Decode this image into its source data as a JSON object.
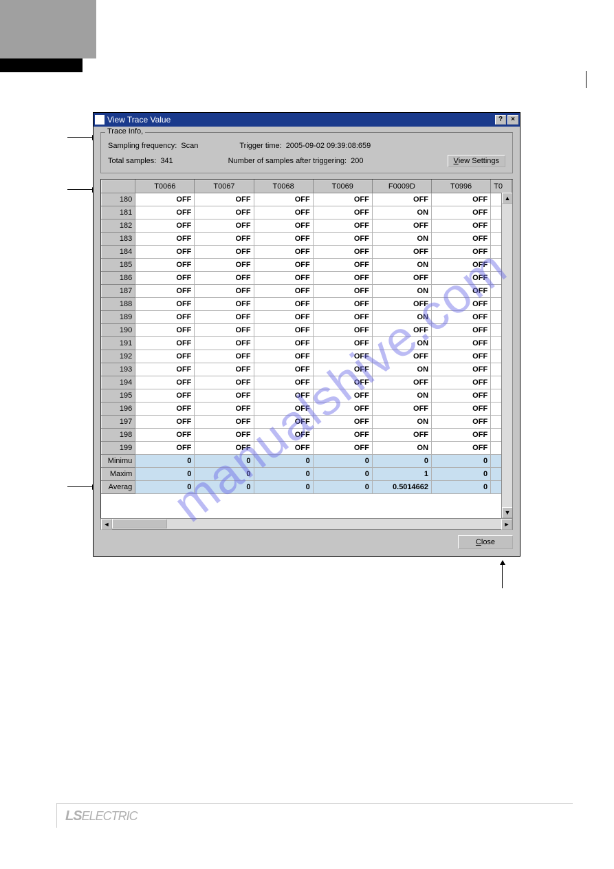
{
  "dialog": {
    "title": "View Trace Value",
    "help_btn": "?",
    "close_x": "×"
  },
  "trace_info": {
    "legend": "Trace Info,",
    "sampling_freq_label": "Sampling frequency:",
    "sampling_freq_value": "Scan",
    "trigger_time_label": "Trigger time:",
    "trigger_time_value": "2005-09-02 09:39:08:659",
    "total_samples_label": "Total samples:",
    "total_samples_value": "341",
    "after_trigger_label": "Number of samples after triggering:",
    "after_trigger_value": "200",
    "view_settings_label": "View Settings"
  },
  "grid": {
    "columns": [
      "T0066",
      "T0067",
      "T0068",
      "T0069",
      "F0009D",
      "T0996",
      "T0"
    ],
    "rows": [
      {
        "idx": "180",
        "cells": [
          "OFF",
          "OFF",
          "OFF",
          "OFF",
          "OFF",
          "OFF"
        ]
      },
      {
        "idx": "181",
        "cells": [
          "OFF",
          "OFF",
          "OFF",
          "OFF",
          "ON",
          "OFF"
        ]
      },
      {
        "idx": "182",
        "cells": [
          "OFF",
          "OFF",
          "OFF",
          "OFF",
          "OFF",
          "OFF"
        ]
      },
      {
        "idx": "183",
        "cells": [
          "OFF",
          "OFF",
          "OFF",
          "OFF",
          "ON",
          "OFF"
        ]
      },
      {
        "idx": "184",
        "cells": [
          "OFF",
          "OFF",
          "OFF",
          "OFF",
          "OFF",
          "OFF"
        ]
      },
      {
        "idx": "185",
        "cells": [
          "OFF",
          "OFF",
          "OFF",
          "OFF",
          "ON",
          "OFF"
        ]
      },
      {
        "idx": "186",
        "cells": [
          "OFF",
          "OFF",
          "OFF",
          "OFF",
          "OFF",
          "OFF"
        ]
      },
      {
        "idx": "187",
        "cells": [
          "OFF",
          "OFF",
          "OFF",
          "OFF",
          "ON",
          "OFF"
        ]
      },
      {
        "idx": "188",
        "cells": [
          "OFF",
          "OFF",
          "OFF",
          "OFF",
          "OFF",
          "OFF"
        ]
      },
      {
        "idx": "189",
        "cells": [
          "OFF",
          "OFF",
          "OFF",
          "OFF",
          "ON",
          "OFF"
        ]
      },
      {
        "idx": "190",
        "cells": [
          "OFF",
          "OFF",
          "OFF",
          "OFF",
          "OFF",
          "OFF"
        ]
      },
      {
        "idx": "191",
        "cells": [
          "OFF",
          "OFF",
          "OFF",
          "OFF",
          "ON",
          "OFF"
        ]
      },
      {
        "idx": "192",
        "cells": [
          "OFF",
          "OFF",
          "OFF",
          "OFF",
          "OFF",
          "OFF"
        ]
      },
      {
        "idx": "193",
        "cells": [
          "OFF",
          "OFF",
          "OFF",
          "OFF",
          "ON",
          "OFF"
        ]
      },
      {
        "idx": "194",
        "cells": [
          "OFF",
          "OFF",
          "OFF",
          "OFF",
          "OFF",
          "OFF"
        ]
      },
      {
        "idx": "195",
        "cells": [
          "OFF",
          "OFF",
          "OFF",
          "OFF",
          "ON",
          "OFF"
        ]
      },
      {
        "idx": "196",
        "cells": [
          "OFF",
          "OFF",
          "OFF",
          "OFF",
          "OFF",
          "OFF"
        ]
      },
      {
        "idx": "197",
        "cells": [
          "OFF",
          "OFF",
          "OFF",
          "OFF",
          "ON",
          "OFF"
        ]
      },
      {
        "idx": "198",
        "cells": [
          "OFF",
          "OFF",
          "OFF",
          "OFF",
          "OFF",
          "OFF"
        ]
      },
      {
        "idx": "199",
        "cells": [
          "OFF",
          "OFF",
          "OFF",
          "OFF",
          "ON",
          "OFF"
        ]
      }
    ],
    "stats": [
      {
        "label": "Minimu",
        "cells": [
          "0",
          "0",
          "0",
          "0",
          "0",
          "0"
        ]
      },
      {
        "label": "Maxim",
        "cells": [
          "0",
          "0",
          "0",
          "0",
          "1",
          "0"
        ]
      },
      {
        "label": "Averag",
        "cells": [
          "0",
          "0",
          "0",
          "0",
          "0.5014662",
          "0"
        ]
      }
    ]
  },
  "footer": {
    "close_label": "Close"
  },
  "watermark": "manualshive.com",
  "brand": "LS",
  "brand_sub": "ELECTRIC"
}
